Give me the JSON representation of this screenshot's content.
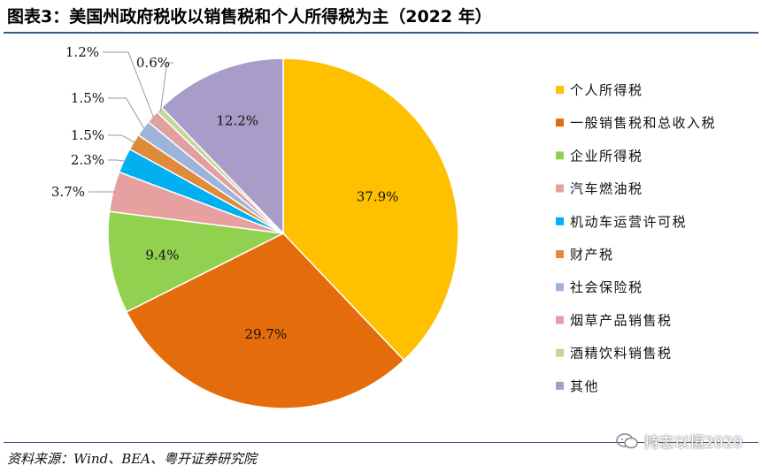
{
  "title": "图表3：美国州政府税收以销售税和个人所得税为主（2022 年）",
  "source": "资料来源：Wind、BEA、粤开证券研究院",
  "watermark": "持志以恒2020",
  "chart_data": {
    "type": "pie",
    "title": "",
    "legend_position": "right",
    "slices": [
      {
        "name": "个人所得税",
        "value": 37.9,
        "label": "37.9%",
        "color": "#FFC000"
      },
      {
        "name": "一般销售税和总收入税",
        "value": 29.7,
        "label": "29.7%",
        "color": "#E46C0A"
      },
      {
        "name": "企业所得税",
        "value": 9.4,
        "label": "9.4%",
        "color": "#92D050"
      },
      {
        "name": "汽车燃油税",
        "value": 3.7,
        "label": "3.7%",
        "color": "#E6A0A0"
      },
      {
        "name": "机动车运营许可税",
        "value": 2.3,
        "label": "2.3%",
        "color": "#00B0F0"
      },
      {
        "name": "财产税",
        "value": 1.5,
        "label": "1.5%",
        "color": "#E08A3C"
      },
      {
        "name": "社会保险税",
        "value": 1.5,
        "label": "1.5%",
        "color": "#9DB3DA"
      },
      {
        "name": "烟草产品销售税",
        "value": 1.2,
        "label": "1.2%",
        "color": "#E0A0A0"
      },
      {
        "name": "酒精饮料销售税",
        "value": 0.6,
        "label": "0.6%",
        "color": "#C4D79B"
      },
      {
        "name": "其他",
        "value": 12.2,
        "label": "12.2%",
        "color": "#A89CC8"
      }
    ]
  }
}
